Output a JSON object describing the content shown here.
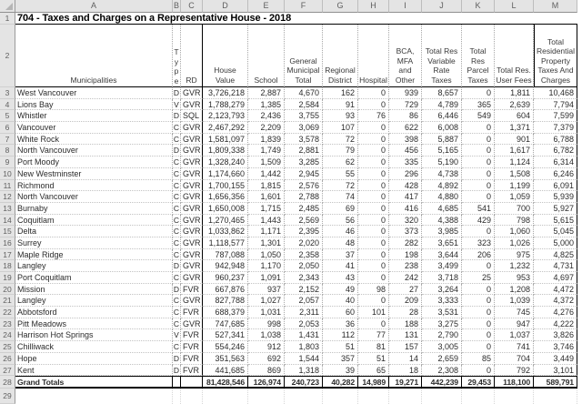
{
  "title": "704 - Taxes and Charges on a Representative House - 2018",
  "colors": {
    "grid_dotted": "#a8a8a8",
    "header_bg": "#e4e4e4",
    "table_border": "#000000",
    "text": "#2b2b2b"
  },
  "sheet": {
    "column_letters": [
      "A",
      "B",
      "C",
      "D",
      "E",
      "F",
      "G",
      "H",
      "I",
      "J",
      "K",
      "L",
      "M"
    ],
    "row_gutter": {
      "title": "1",
      "header": "2",
      "trailing": "29"
    }
  },
  "header": {
    "municipalities": "Municipalities",
    "type_vertical": "T\ny\np\ne",
    "rd": "RD",
    "columns": [
      "House Value",
      "School",
      "General Municipal Total",
      "Regional District",
      "Hospital",
      "BCA, MFA and Other",
      "Total Res Variable Rate Taxes",
      "Total Res Parcel Taxes",
      "Total Res. User Fees",
      "Total Residential Property Taxes And Charges"
    ]
  },
  "rows": [
    {
      "row": "3",
      "name": "West Vancouver",
      "type": "D",
      "rd": "GVR",
      "values": [
        "3,726,218",
        "2,887",
        "4,670",
        "162",
        "0",
        "939",
        "8,657",
        "0",
        "1,811",
        "10,468"
      ]
    },
    {
      "row": "4",
      "name": "Lions Bay",
      "type": "V",
      "rd": "GVR",
      "values": [
        "1,788,279",
        "1,385",
        "2,584",
        "91",
        "0",
        "729",
        "4,789",
        "365",
        "2,639",
        "7,794"
      ]
    },
    {
      "row": "5",
      "name": "Whistler",
      "type": "D",
      "rd": "SQL",
      "values": [
        "2,123,793",
        "2,436",
        "3,755",
        "93",
        "76",
        "86",
        "6,446",
        "549",
        "604",
        "7,599"
      ]
    },
    {
      "row": "6",
      "name": "Vancouver",
      "type": "C",
      "rd": "GVR",
      "values": [
        "2,467,292",
        "2,209",
        "3,069",
        "107",
        "0",
        "622",
        "6,008",
        "0",
        "1,371",
        "7,379"
      ]
    },
    {
      "row": "7",
      "name": "White Rock",
      "type": "C",
      "rd": "GVR",
      "values": [
        "1,581,097",
        "1,839",
        "3,578",
        "72",
        "0",
        "398",
        "5,887",
        "0",
        "901",
        "6,788"
      ]
    },
    {
      "row": "8",
      "name": "North Vancouver",
      "type": "D",
      "rd": "GVR",
      "values": [
        "1,809,338",
        "1,749",
        "2,881",
        "79",
        "0",
        "456",
        "5,165",
        "0",
        "1,617",
        "6,782"
      ]
    },
    {
      "row": "9",
      "name": "Port Moody",
      "type": "C",
      "rd": "GVR",
      "values": [
        "1,328,240",
        "1,509",
        "3,285",
        "62",
        "0",
        "335",
        "5,190",
        "0",
        "1,124",
        "6,314"
      ]
    },
    {
      "row": "10",
      "name": "New Westminster",
      "type": "C",
      "rd": "GVR",
      "values": [
        "1,174,660",
        "1,442",
        "2,945",
        "55",
        "0",
        "296",
        "4,738",
        "0",
        "1,508",
        "6,246"
      ]
    },
    {
      "row": "11",
      "name": "Richmond",
      "type": "C",
      "rd": "GVR",
      "values": [
        "1,700,155",
        "1,815",
        "2,576",
        "72",
        "0",
        "428",
        "4,892",
        "0",
        "1,199",
        "6,091"
      ]
    },
    {
      "row": "12",
      "name": "North Vancouver",
      "type": "C",
      "rd": "GVR",
      "values": [
        "1,656,356",
        "1,601",
        "2,788",
        "74",
        "0",
        "417",
        "4,880",
        "0",
        "1,059",
        "5,939"
      ]
    },
    {
      "row": "13",
      "name": "Burnaby",
      "type": "C",
      "rd": "GVR",
      "values": [
        "1,650,008",
        "1,715",
        "2,485",
        "69",
        "0",
        "416",
        "4,685",
        "541",
        "700",
        "5,927"
      ]
    },
    {
      "row": "14",
      "name": "Coquitlam",
      "type": "C",
      "rd": "GVR",
      "values": [
        "1,270,465",
        "1,443",
        "2,569",
        "56",
        "0",
        "320",
        "4,388",
        "429",
        "798",
        "5,615"
      ]
    },
    {
      "row": "15",
      "name": "Delta",
      "type": "C",
      "rd": "GVR",
      "values": [
        "1,033,862",
        "1,171",
        "2,395",
        "46",
        "0",
        "373",
        "3,985",
        "0",
        "1,060",
        "5,045"
      ]
    },
    {
      "row": "16",
      "name": "Surrey",
      "type": "C",
      "rd": "GVR",
      "values": [
        "1,118,577",
        "1,301",
        "2,020",
        "48",
        "0",
        "282",
        "3,651",
        "323",
        "1,026",
        "5,000"
      ]
    },
    {
      "row": "17",
      "name": "Maple Ridge",
      "type": "C",
      "rd": "GVR",
      "values": [
        "787,088",
        "1,050",
        "2,358",
        "37",
        "0",
        "198",
        "3,644",
        "206",
        "975",
        "4,825"
      ]
    },
    {
      "row": "18",
      "name": "Langley",
      "type": "D",
      "rd": "GVR",
      "values": [
        "942,948",
        "1,170",
        "2,050",
        "41",
        "0",
        "238",
        "3,499",
        "0",
        "1,232",
        "4,731"
      ]
    },
    {
      "row": "19",
      "name": "Port Coquitlam",
      "type": "C",
      "rd": "GVR",
      "values": [
        "960,237",
        "1,091",
        "2,343",
        "43",
        "0",
        "242",
        "3,718",
        "25",
        "953",
        "4,697"
      ]
    },
    {
      "row": "20",
      "name": "Mission",
      "type": "D",
      "rd": "FVR",
      "values": [
        "667,876",
        "937",
        "2,152",
        "49",
        "98",
        "27",
        "3,264",
        "0",
        "1,208",
        "4,472"
      ]
    },
    {
      "row": "21",
      "name": "Langley",
      "type": "C",
      "rd": "GVR",
      "values": [
        "827,788",
        "1,027",
        "2,057",
        "40",
        "0",
        "209",
        "3,333",
        "0",
        "1,039",
        "4,372"
      ]
    },
    {
      "row": "22",
      "name": "Abbotsford",
      "type": "C",
      "rd": "FVR",
      "values": [
        "688,379",
        "1,031",
        "2,311",
        "60",
        "101",
        "28",
        "3,531",
        "0",
        "745",
        "4,276"
      ]
    },
    {
      "row": "23",
      "name": "Pitt Meadows",
      "type": "C",
      "rd": "GVR",
      "values": [
        "747,685",
        "998",
        "2,053",
        "36",
        "0",
        "188",
        "3,275",
        "0",
        "947",
        "4,222"
      ]
    },
    {
      "row": "24",
      "name": "Harrison Hot Springs",
      "type": "V",
      "rd": "FVR",
      "values": [
        "527,341",
        "1,038",
        "1,431",
        "112",
        "77",
        "131",
        "2,790",
        "0",
        "1,037",
        "3,826"
      ]
    },
    {
      "row": "25",
      "name": "Chilliwack",
      "type": "C",
      "rd": "FVR",
      "values": [
        "554,246",
        "912",
        "1,803",
        "51",
        "81",
        "157",
        "3,005",
        "0",
        "741",
        "3,746"
      ]
    },
    {
      "row": "26",
      "name": "Hope",
      "type": "D",
      "rd": "FVR",
      "values": [
        "351,563",
        "692",
        "1,544",
        "357",
        "51",
        "14",
        "2,659",
        "85",
        "704",
        "3,449"
      ]
    },
    {
      "row": "27",
      "name": "Kent",
      "type": "D",
      "rd": "FVR",
      "values": [
        "441,685",
        "869",
        "1,318",
        "39",
        "65",
        "18",
        "2,308",
        "0",
        "792",
        "3,101"
      ]
    }
  ],
  "totals": {
    "row": "28",
    "label": "Grand Totals",
    "values": [
      "81,428,546",
      "126,974",
      "240,723",
      "40,282",
      "14,989",
      "19,271",
      "442,239",
      "29,453",
      "118,100",
      "589,791"
    ]
  }
}
